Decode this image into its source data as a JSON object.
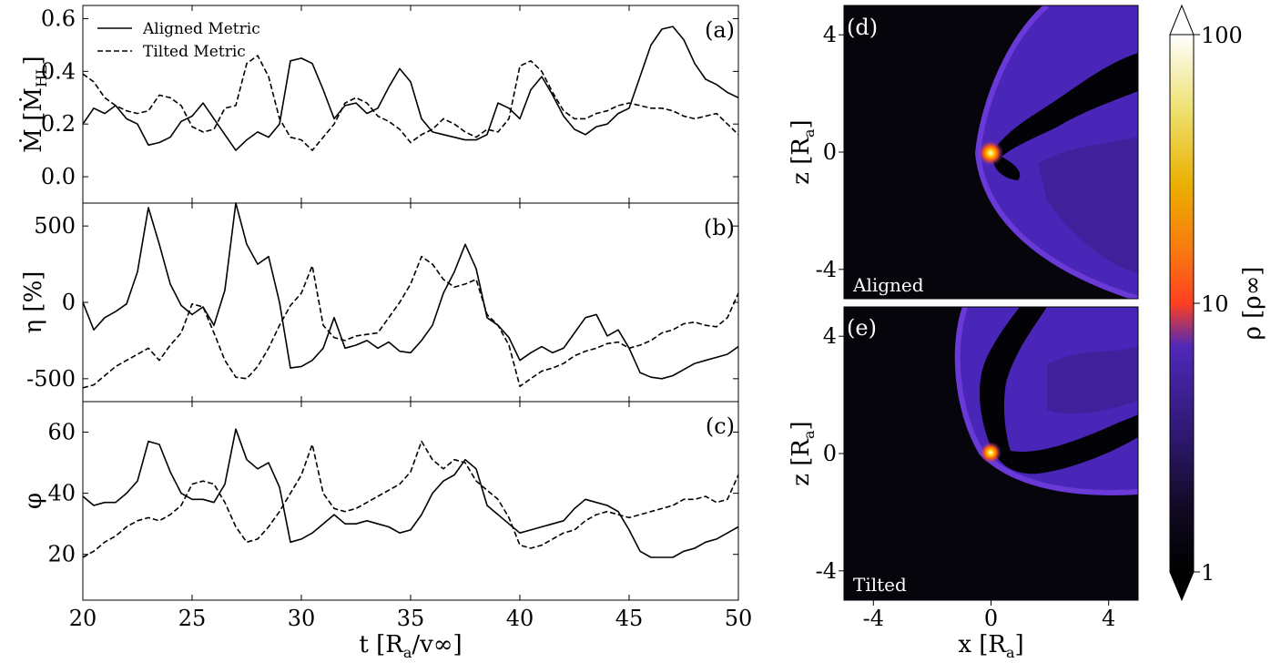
{
  "chart_data": [
    {
      "type": "line",
      "panel_label": "(a)",
      "ylabel_main": "Ṁ [Ṁ",
      "ylabel_sub": "HL",
      "ylabel_end": "]",
      "xlim": [
        20,
        50
      ],
      "ylim": [
        -0.1,
        0.65
      ],
      "yticks": [
        "0.0",
        "0.2",
        "0.4",
        "0.6"
      ],
      "yticks_values": [
        0.0,
        0.2,
        0.4,
        0.6
      ],
      "legend": {
        "placement": "upper-left",
        "entries": [
          "Aligned Metric",
          "Tilted Metric"
        ]
      },
      "series": [
        {
          "name": "Aligned Metric",
          "style": "solid",
          "x": [
            20,
            20.5,
            21,
            21.5,
            22,
            22.5,
            23,
            23.5,
            24,
            24.5,
            25,
            25.5,
            26,
            26.5,
            27,
            27.5,
            28,
            28.5,
            29,
            29.5,
            30,
            30.5,
            31,
            31.5,
            32,
            32.5,
            33,
            33.5,
            34,
            34.5,
            35,
            35.5,
            36,
            36.5,
            37,
            37.5,
            38,
            38.5,
            39,
            39.5,
            40,
            40.5,
            41,
            41.5,
            42,
            42.5,
            43,
            43.5,
            44,
            44.5,
            45,
            45.5,
            46,
            46.5,
            47,
            47.5,
            48,
            48.5,
            49,
            49.5,
            50
          ],
          "y": [
            0.2,
            0.26,
            0.24,
            0.27,
            0.22,
            0.2,
            0.12,
            0.13,
            0.15,
            0.21,
            0.23,
            0.28,
            0.22,
            0.16,
            0.1,
            0.14,
            0.17,
            0.15,
            0.2,
            0.44,
            0.45,
            0.43,
            0.33,
            0.22,
            0.27,
            0.28,
            0.24,
            0.26,
            0.34,
            0.41,
            0.36,
            0.22,
            0.17,
            0.16,
            0.15,
            0.14,
            0.14,
            0.16,
            0.28,
            0.26,
            0.22,
            0.33,
            0.38,
            0.31,
            0.23,
            0.18,
            0.16,
            0.19,
            0.2,
            0.24,
            0.26,
            0.38,
            0.5,
            0.56,
            0.57,
            0.52,
            0.43,
            0.37,
            0.35,
            0.32,
            0.3
          ]
        },
        {
          "name": "Tilted Metric",
          "style": "dashed",
          "x": [
            20,
            20.5,
            21,
            21.5,
            22,
            22.5,
            23,
            23.5,
            24,
            24.5,
            25,
            25.5,
            26,
            26.5,
            27,
            27.5,
            28,
            28.5,
            29,
            29.5,
            30,
            30.5,
            31,
            31.5,
            32,
            32.5,
            33,
            33.5,
            34,
            34.5,
            35,
            35.5,
            36,
            36.5,
            37,
            37.5,
            38,
            38.5,
            39,
            39.5,
            40,
            40.5,
            41,
            41.5,
            42,
            42.5,
            43,
            43.5,
            44,
            44.5,
            45,
            45.5,
            46,
            46.5,
            47,
            47.5,
            48,
            48.5,
            49,
            49.5,
            50
          ],
          "y": [
            0.39,
            0.36,
            0.3,
            0.27,
            0.25,
            0.24,
            0.25,
            0.31,
            0.3,
            0.27,
            0.19,
            0.17,
            0.18,
            0.26,
            0.27,
            0.43,
            0.46,
            0.38,
            0.22,
            0.15,
            0.14,
            0.1,
            0.15,
            0.2,
            0.28,
            0.3,
            0.28,
            0.23,
            0.21,
            0.18,
            0.13,
            0.16,
            0.18,
            0.22,
            0.2,
            0.17,
            0.15,
            0.18,
            0.17,
            0.22,
            0.42,
            0.44,
            0.4,
            0.32,
            0.25,
            0.22,
            0.22,
            0.24,
            0.25,
            0.27,
            0.28,
            0.27,
            0.26,
            0.26,
            0.25,
            0.23,
            0.22,
            0.23,
            0.24,
            0.2,
            0.16
          ]
        }
      ]
    },
    {
      "type": "line",
      "panel_label": "(b)",
      "ylabel_main": "η [%]",
      "xlim": [
        20,
        50
      ],
      "ylim": [
        -650,
        650
      ],
      "yticks": [
        "-500",
        "0",
        "500"
      ],
      "yticks_values": [
        -500,
        0,
        500
      ],
      "series": [
        {
          "name": "Aligned Metric",
          "style": "solid",
          "x": [
            20,
            20.5,
            21,
            21.5,
            22,
            22.5,
            23,
            23.5,
            24,
            24.5,
            25,
            25.5,
            26,
            26.5,
            27,
            27.5,
            28,
            28.5,
            29,
            29.5,
            30,
            30.5,
            31,
            31.5,
            32,
            32.5,
            33,
            33.5,
            34,
            34.5,
            35,
            35.5,
            36,
            36.5,
            37,
            37.5,
            38,
            38.5,
            39,
            39.5,
            40,
            40.5,
            41,
            41.5,
            42,
            42.5,
            43,
            43.5,
            44,
            44.5,
            45,
            45.5,
            46,
            46.5,
            47,
            47.5,
            48,
            48.5,
            49,
            49.5,
            50
          ],
          "y": [
            0,
            -180,
            -100,
            -60,
            -10,
            200,
            620,
            380,
            120,
            -20,
            -80,
            -30,
            -150,
            80,
            650,
            380,
            250,
            300,
            0,
            -430,
            -420,
            -380,
            -300,
            -100,
            -300,
            -280,
            -250,
            -300,
            -260,
            -320,
            -330,
            -250,
            -150,
            60,
            200,
            380,
            220,
            -100,
            -150,
            -230,
            -380,
            -330,
            -290,
            -330,
            -300,
            -200,
            -100,
            -80,
            -220,
            -180,
            -300,
            -460,
            -490,
            -500,
            -480,
            -440,
            -400,
            -380,
            -360,
            -340,
            -290
          ]
        },
        {
          "name": "Tilted Metric",
          "style": "dashed",
          "x": [
            20,
            20.5,
            21,
            21.5,
            22,
            22.5,
            23,
            23.5,
            24,
            24.5,
            25,
            25.5,
            26,
            26.5,
            27,
            27.5,
            28,
            28.5,
            29,
            29.5,
            30,
            30.5,
            31,
            31.5,
            32,
            32.5,
            33,
            33.5,
            34,
            34.5,
            35,
            35.5,
            36,
            36.5,
            37,
            37.5,
            38,
            38.5,
            39,
            39.5,
            40,
            40.5,
            41,
            41.5,
            42,
            42.5,
            43,
            43.5,
            44,
            44.5,
            45,
            45.5,
            46,
            46.5,
            47,
            47.5,
            48,
            48.5,
            49,
            49.5,
            50
          ],
          "y": [
            -560,
            -540,
            -480,
            -420,
            -380,
            -340,
            -300,
            -380,
            -280,
            -200,
            -10,
            -30,
            -200,
            -380,
            -490,
            -500,
            -420,
            -300,
            -150,
            -20,
            60,
            240,
            -150,
            -230,
            -250,
            -220,
            -210,
            -200,
            -100,
            0,
            120,
            300,
            250,
            150,
            100,
            120,
            150,
            -80,
            -150,
            -280,
            -550,
            -500,
            -450,
            -430,
            -400,
            -350,
            -320,
            -300,
            -270,
            -260,
            -300,
            -280,
            -250,
            -200,
            -180,
            -140,
            -130,
            -150,
            -160,
            -100,
            60
          ]
        }
      ]
    },
    {
      "type": "line",
      "panel_label": "(c)",
      "ylabel_main": "φ",
      "xlim": [
        20,
        50
      ],
      "xticks": [
        "20",
        "25",
        "30",
        "35",
        "40",
        "45",
        "50"
      ],
      "xticks_values": [
        20,
        25,
        30,
        35,
        40,
        45,
        50
      ],
      "xlabel_main": "t [R",
      "xlabel_sub": "a",
      "xlabel_end": "/v∞]",
      "ylim": [
        5,
        70
      ],
      "yticks": [
        "20",
        "40",
        "60"
      ],
      "yticks_values": [
        20,
        40,
        60
      ],
      "series": [
        {
          "name": "Aligned Metric",
          "style": "solid",
          "x": [
            20,
            20.5,
            21,
            21.5,
            22,
            22.5,
            23,
            23.5,
            24,
            24.5,
            25,
            25.5,
            26,
            26.5,
            27,
            27.5,
            28,
            28.5,
            29,
            29.5,
            30,
            30.5,
            31,
            31.5,
            32,
            32.5,
            33,
            33.5,
            34,
            34.5,
            35,
            35.5,
            36,
            36.5,
            37,
            37.5,
            38,
            38.5,
            39,
            39.5,
            40,
            40.5,
            41,
            41.5,
            42,
            42.5,
            43,
            43.5,
            44,
            44.5,
            45,
            45.5,
            46,
            46.5,
            47,
            47.5,
            48,
            48.5,
            49,
            49.5,
            50
          ],
          "y": [
            39,
            36,
            37,
            37,
            40,
            44,
            57,
            56,
            47,
            40,
            38,
            38,
            37,
            43,
            61,
            51,
            48,
            50,
            42,
            24,
            25,
            27,
            30,
            33,
            30,
            30,
            31,
            30,
            29,
            27,
            28,
            33,
            40,
            44,
            46,
            51,
            48,
            36,
            33,
            30,
            27,
            28,
            29,
            30,
            31,
            35,
            38,
            37,
            36,
            34,
            28,
            21,
            19,
            19,
            19,
            21,
            22,
            24,
            25,
            27,
            29
          ]
        },
        {
          "name": "Tilted Metric",
          "style": "dashed",
          "x": [
            20,
            20.5,
            21,
            21.5,
            22,
            22.5,
            23,
            23.5,
            24,
            24.5,
            25,
            25.5,
            26,
            26.5,
            27,
            27.5,
            28,
            28.5,
            29,
            29.5,
            30,
            30.5,
            31,
            31.5,
            32,
            32.5,
            33,
            33.5,
            34,
            34.5,
            35,
            35.5,
            36,
            36.5,
            37,
            37.5,
            38,
            38.5,
            39,
            39.5,
            40,
            40.5,
            41,
            41.5,
            42,
            42.5,
            43,
            43.5,
            44,
            44.5,
            45,
            45.5,
            46,
            46.5,
            47,
            47.5,
            48,
            48.5,
            49,
            49.5,
            50
          ],
          "y": [
            19,
            21,
            24,
            26,
            29,
            31,
            32,
            31,
            33,
            36,
            43,
            44,
            43,
            37,
            29,
            24,
            25,
            29,
            34,
            40,
            46,
            56,
            40,
            35,
            34,
            35,
            37,
            39,
            41,
            43,
            47,
            57,
            51,
            48,
            51,
            50,
            44,
            41,
            38,
            32,
            23,
            22,
            23,
            25,
            27,
            28,
            31,
            33,
            34,
            33,
            32,
            33,
            34,
            35,
            36,
            38,
            38,
            39,
            37,
            38,
            46
          ]
        }
      ]
    },
    {
      "type": "heatmap",
      "panel_label": "(d)",
      "map_label": "Aligned",
      "ylabel_main": "z [R",
      "ylabel_sub": "a",
      "ylabel_end": "]",
      "xlim": [
        -5,
        5
      ],
      "ylim": [
        -5,
        5
      ],
      "yticks": [
        "4",
        "0",
        "-4"
      ],
      "yticks_values": [
        4,
        0,
        -4
      ]
    },
    {
      "type": "heatmap",
      "panel_label": "(e)",
      "map_label": "Tilted",
      "ylabel_main": "z [R",
      "ylabel_sub": "a",
      "ylabel_end": "]",
      "xlabel_main": "x [R",
      "xlabel_sub": "a",
      "xlabel_end": "]",
      "xlim": [
        -5,
        5
      ],
      "ylim": [
        -5,
        5
      ],
      "xticks": [
        "-4",
        "0",
        "4"
      ],
      "xticks_values": [
        -4,
        0,
        4
      ],
      "yticks": [
        "4",
        "0",
        "-4"
      ],
      "yticks_values": [
        4,
        0,
        -4
      ]
    }
  ],
  "colorbar": {
    "label_main": "ρ [ρ∞]",
    "scale": "log",
    "ticks": [
      "100",
      "10",
      "1"
    ],
    "ticks_values": [
      100,
      10,
      1
    ],
    "colormap": [
      "#000000",
      "#1a0c35",
      "#3b1e8a",
      "#5a2bc4",
      "#9a2e8c",
      "#e0392b",
      "#fa6a14",
      "#f5b300",
      "#f3e06a",
      "#ffffff"
    ]
  },
  "colors": {
    "background_dark": "#07050c",
    "plasma_purple": "#4a26b8",
    "hot_core": "#ff5a10"
  }
}
